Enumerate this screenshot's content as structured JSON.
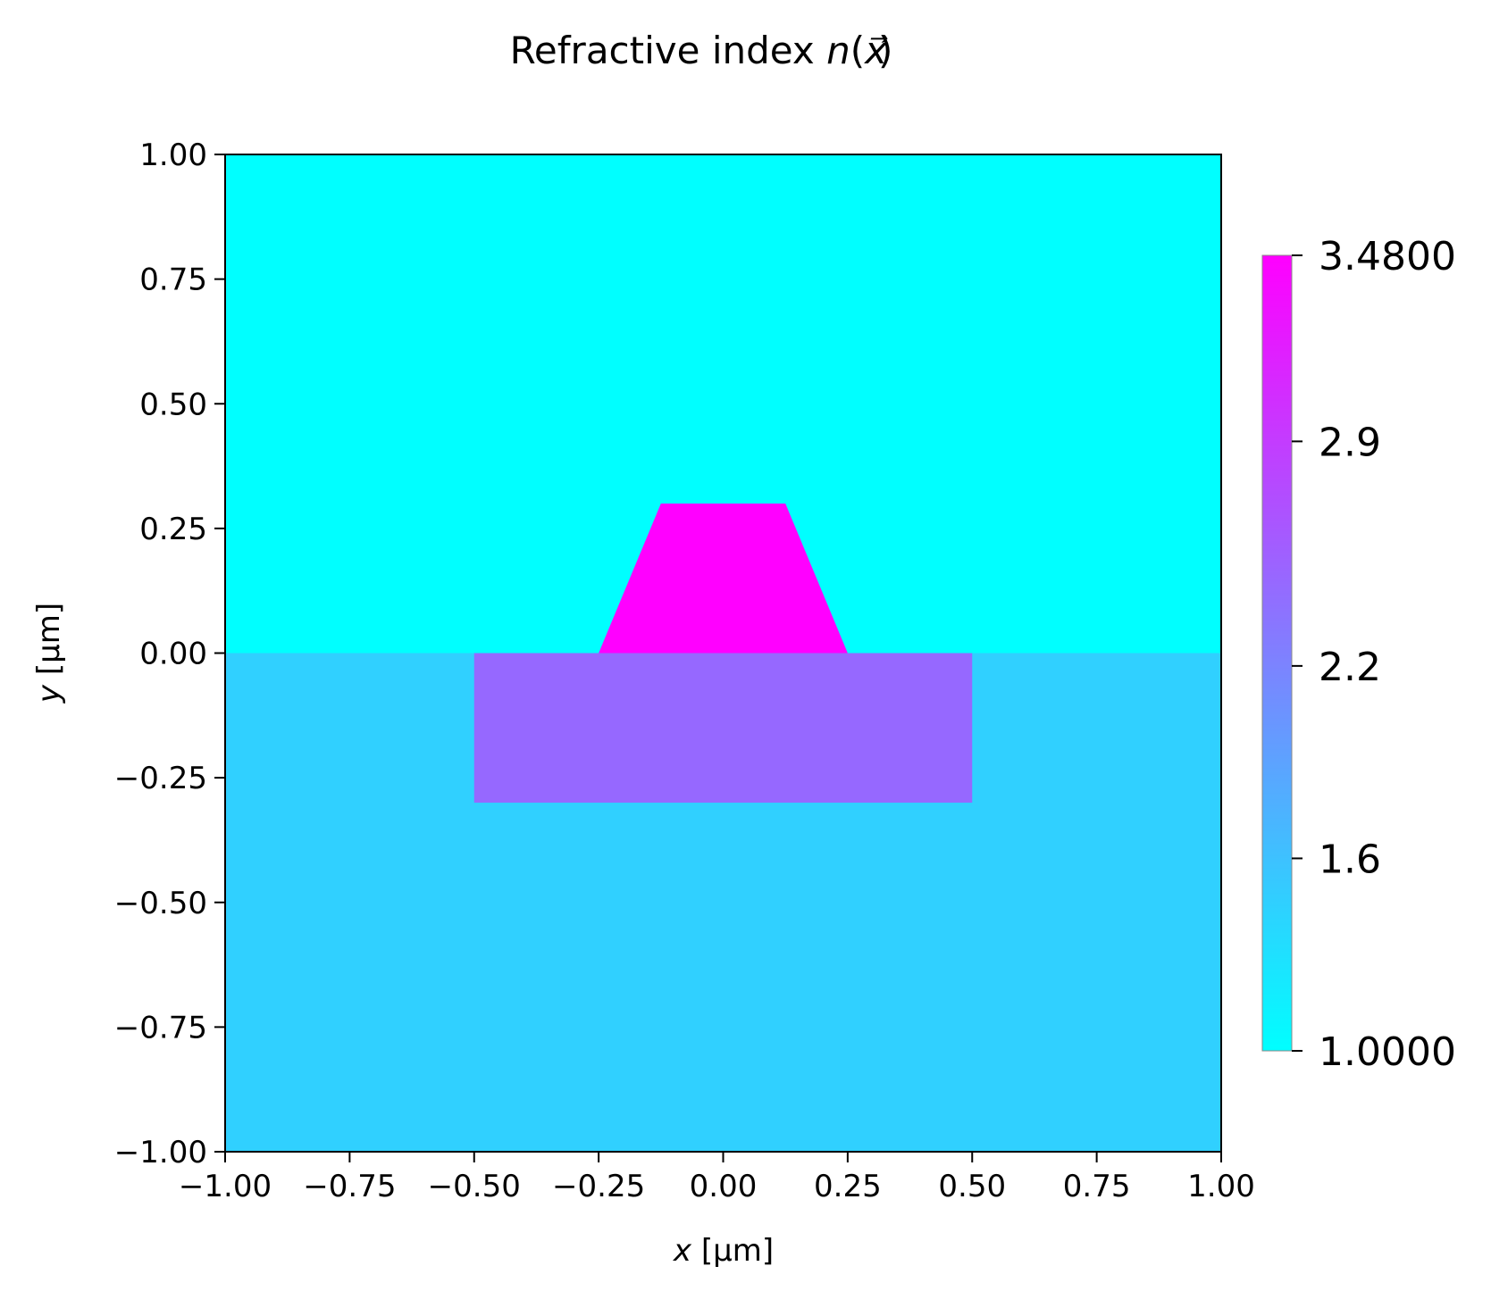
{
  "chart_data": {
    "type": "heatmap",
    "title": {
      "prefix": "Refractive index ",
      "n": "n",
      "open": "(",
      "x": "x",
      "arrow": "⃗",
      "close": ")"
    },
    "xlabel": {
      "var": "x",
      "unit": " [µm]"
    },
    "ylabel": {
      "var": "y",
      "unit": " [µm]"
    },
    "xlim": [
      -1.0,
      1.0
    ],
    "ylim": [
      -1.0,
      1.0
    ],
    "xticks": [
      -1.0,
      -0.75,
      -0.5,
      -0.25,
      0.0,
      0.25,
      0.5,
      0.75,
      1.0
    ],
    "yticks": [
      -1.0,
      -0.75,
      -0.5,
      -0.25,
      0.0,
      0.25,
      0.5,
      0.75,
      1.0
    ],
    "xtick_labels": [
      "−1.00",
      "−0.75",
      "−0.50",
      "−0.25",
      "0.00",
      "0.25",
      "0.50",
      "0.75",
      "1.00"
    ],
    "ytick_labels": [
      "−1.00",
      "−0.75",
      "−0.50",
      "−0.25",
      "0.00",
      "0.25",
      "0.50",
      "0.75",
      "1.00"
    ],
    "colormap": "cool",
    "regions": [
      {
        "name": "upper-cladding",
        "shape": "rect",
        "x": [
          -1.0,
          1.0
        ],
        "y": [
          0.0,
          1.0
        ],
        "n": 1.0,
        "color": "#00ffff"
      },
      {
        "name": "substrate",
        "shape": "rect",
        "x": [
          -1.0,
          1.0
        ],
        "y": [
          -1.0,
          0.0
        ],
        "n": 1.44,
        "color": "#30d0ff"
      },
      {
        "name": "slab",
        "shape": "rect",
        "x": [
          -0.5,
          0.5
        ],
        "y": [
          -0.3,
          0.0
        ],
        "n": 2.2,
        "color": "#9668ff"
      },
      {
        "name": "ridge",
        "shape": "trapezoid",
        "points": [
          [
            -0.25,
            0.0
          ],
          [
            0.25,
            0.0
          ],
          [
            0.125,
            0.3
          ],
          [
            -0.125,
            0.3
          ]
        ],
        "n": 3.48,
        "color": "#ff00ff"
      }
    ],
    "colorbar": {
      "vmin": 1.0,
      "vmax": 3.48,
      "low_color": "#00ffff",
      "high_color": "#ff00ff",
      "ticks": [
        {
          "value": 1.0,
          "label": "1.0000"
        },
        {
          "value": 1.6,
          "label": "1.6"
        },
        {
          "value": 2.2,
          "label": "2.2"
        },
        {
          "value": 2.9,
          "label": "2.9"
        },
        {
          "value": 3.48,
          "label": "3.4800"
        }
      ]
    }
  }
}
